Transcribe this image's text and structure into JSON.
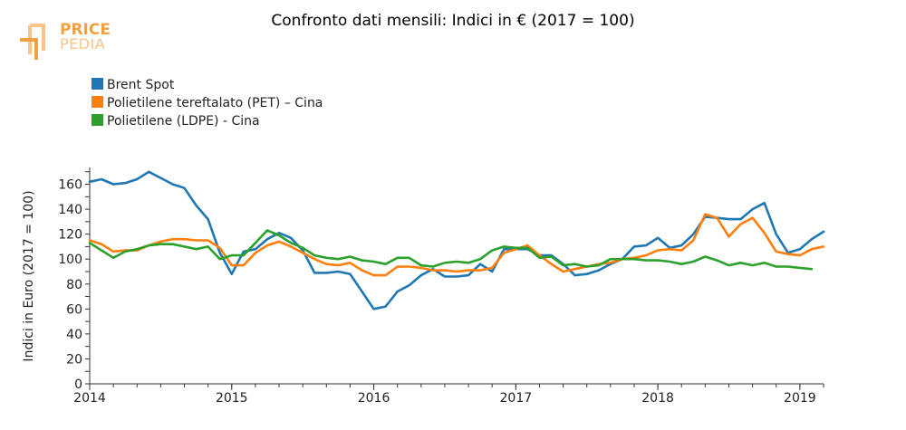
{
  "logo": {
    "line1": "PRICE",
    "line2": "PEDIA",
    "color_primary": "#f0a242",
    "color_secondary": "#f7c58a"
  },
  "chart_data": {
    "type": "line",
    "title": "Confronto dati mensili: Indici in € (2017 = 100)",
    "ylabel": "Indici in Euro (2017 = 100)",
    "xlabel": "",
    "ylim": [
      0,
      172
    ],
    "yticks": [
      0,
      20,
      40,
      60,
      80,
      100,
      120,
      140,
      160
    ],
    "xlim": [
      "2014-01",
      "2019-03"
    ],
    "xticks": [
      {
        "label": "2014",
        "date": "2014-01"
      },
      {
        "label": "2015",
        "date": "2015-01"
      },
      {
        "label": "2016",
        "date": "2016-01"
      },
      {
        "label": "2017",
        "date": "2017-01"
      },
      {
        "label": "2018",
        "date": "2018-01"
      },
      {
        "label": "2019",
        "date": "2019-01"
      }
    ],
    "grid": false,
    "legend_position": "top-left",
    "start": "2014-01",
    "series": [
      {
        "name": "Brent Spot",
        "color": "#1f77b4",
        "values": [
          162,
          164,
          160,
          161,
          164,
          170,
          165,
          160,
          157,
          143,
          132,
          105,
          88,
          106,
          108,
          116,
          121,
          117,
          107,
          89,
          89,
          90,
          88,
          74,
          60,
          62,
          74,
          79,
          87,
          92,
          86,
          86,
          87,
          96,
          90,
          108,
          108,
          108,
          103,
          103,
          96,
          87,
          88,
          91,
          96,
          100,
          110,
          111,
          117,
          109,
          111,
          120,
          134,
          133,
          132,
          132,
          140,
          145,
          120,
          105,
          108,
          116,
          122
        ],
        "last": "2019-03"
      },
      {
        "name": "Polietilene tereftalato (PET) – Cina",
        "color": "#ff7f0e",
        "values": [
          115,
          112,
          106,
          107,
          107,
          111,
          114,
          116,
          116,
          115,
          115,
          109,
          95,
          95,
          105,
          111,
          114,
          110,
          105,
          100,
          96,
          95,
          97,
          91,
          87,
          87,
          94,
          94,
          93,
          91,
          91,
          90,
          91,
          91,
          93,
          105,
          108,
          111,
          103,
          96,
          90,
          92,
          94,
          96,
          97,
          100,
          101,
          103,
          107,
          108,
          107,
          115,
          136,
          133,
          118,
          128,
          133,
          121,
          106,
          104,
          103,
          108,
          110
        ],
        "last": "2019-03"
      },
      {
        "name": "Polietilene (LDPE) - Cina",
        "color": "#2ca02c",
        "values": [
          113,
          107,
          101,
          106,
          108,
          111,
          112,
          112,
          110,
          108,
          110,
          100,
          103,
          103,
          113,
          123,
          119,
          113,
          109,
          103,
          101,
          100,
          102,
          99,
          98,
          96,
          101,
          101,
          95,
          94,
          97,
          98,
          97,
          100,
          107,
          110,
          109,
          109,
          101,
          102,
          95,
          96,
          94,
          95,
          100,
          100,
          100,
          99,
          99,
          98,
          96,
          98,
          102,
          99,
          95,
          97,
          95,
          97,
          94,
          94,
          93,
          92
        ],
        "last": "2019-02"
      }
    ]
  }
}
